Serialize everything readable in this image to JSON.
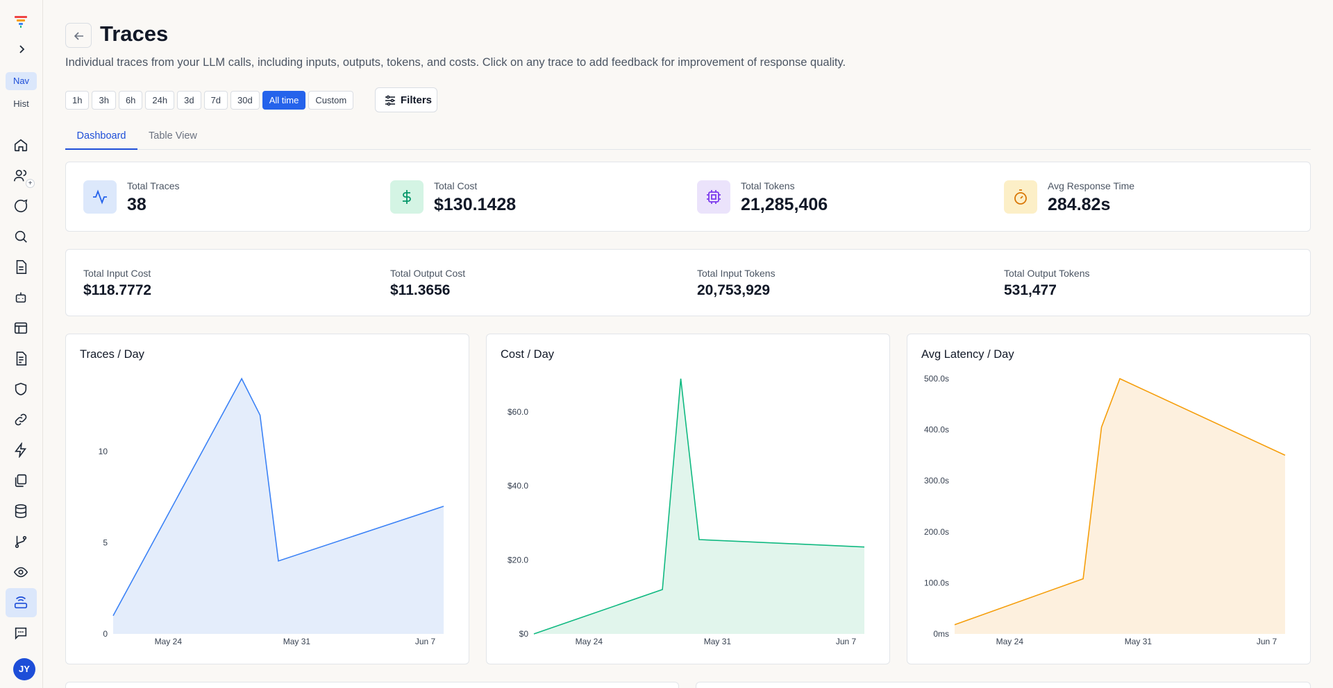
{
  "sidebar": {
    "nav_label": "Nav",
    "hist_label": "Hist",
    "avatar_initials": "JY",
    "icons": [
      "home-icon",
      "users-icon",
      "chat-icon",
      "search-icon",
      "document-icon",
      "bot-icon",
      "layout-icon",
      "file-text-icon",
      "shield-icon",
      "link-icon",
      "lightning-icon",
      "files-icon",
      "database-icon",
      "branch-icon",
      "eye-icon",
      "router-icon",
      "message-square-icon"
    ]
  },
  "header": {
    "title": "Traces",
    "subtitle": "Individual traces from your LLM calls, including inputs, outputs, tokens, and costs. Click on any trace to add feedback for improvement of response quality."
  },
  "time_ranges": [
    "1h",
    "3h",
    "6h",
    "24h",
    "3d",
    "7d",
    "30d",
    "All time",
    "Custom"
  ],
  "selected_range": "All time",
  "filters_label": "Filters",
  "tabs": {
    "dashboard": "Dashboard",
    "table": "Table View",
    "active": "Dashboard"
  },
  "stats": [
    {
      "label": "Total Traces",
      "value": "38",
      "icon": "activity-icon",
      "color": "#2563eb"
    },
    {
      "label": "Total Cost",
      "value": "$130.1428",
      "icon": "dollar-icon",
      "color": "#059669"
    },
    {
      "label": "Total Tokens",
      "value": "21,285,406",
      "icon": "cpu-icon",
      "color": "#7c3aed"
    },
    {
      "label": "Avg Response Time",
      "value": "284.82s",
      "icon": "timer-icon",
      "color": "#d97706"
    }
  ],
  "sub_stats": [
    {
      "label": "Total Input Cost",
      "value": "$118.7772"
    },
    {
      "label": "Total Output Cost",
      "value": "$11.3656"
    },
    {
      "label": "Total Input Tokens",
      "value": "20,753,929"
    },
    {
      "label": "Total Output Tokens",
      "value": "531,477"
    }
  ],
  "chart_data": [
    {
      "type": "area",
      "title": "Traces / Day",
      "x_ticks": [
        "May 24",
        "May 31",
        "Jun 7"
      ],
      "y_ticks": [
        "0",
        "5",
        "10"
      ],
      "ylim": [
        0,
        14
      ],
      "color": "#3b82f6",
      "fill": "#e4edfb",
      "points": [
        {
          "x": "May 21",
          "y": 1
        },
        {
          "x": "May 28",
          "y": 14
        },
        {
          "x": "May 29",
          "y": 12
        },
        {
          "x": "May 30",
          "y": 4
        },
        {
          "x": "Jun 8",
          "y": 7
        }
      ]
    },
    {
      "type": "area",
      "title": "Cost / Day",
      "x_ticks": [
        "May 24",
        "May 31",
        "Jun 7"
      ],
      "y_ticks": [
        "$0",
        "$20.0",
        "$40.0",
        "$60.0"
      ],
      "ylim": [
        0,
        69
      ],
      "color": "#10b981",
      "fill": "#e1f5ec",
      "points": [
        {
          "x": "May 21",
          "y": 0
        },
        {
          "x": "May 28",
          "y": 12
        },
        {
          "x": "May 29",
          "y": 69
        },
        {
          "x": "May 30",
          "y": 25.5
        },
        {
          "x": "Jun 8",
          "y": 23.5
        }
      ]
    },
    {
      "type": "area",
      "title": "Avg Latency / Day",
      "x_ticks": [
        "May 24",
        "May 31",
        "Jun 7"
      ],
      "y_ticks": [
        "0ms",
        "100.0s",
        "200.0s",
        "300.0s",
        "400.0s",
        "500.0s"
      ],
      "ylim": [
        0,
        500
      ],
      "color": "#f59e0b",
      "fill": "#fdf0de",
      "points": [
        {
          "x": "May 21",
          "y": 18
        },
        {
          "x": "May 28",
          "y": 108
        },
        {
          "x": "May 29",
          "y": 405
        },
        {
          "x": "May 30",
          "y": 500
        },
        {
          "x": "Jun 8",
          "y": 350
        }
      ]
    }
  ]
}
